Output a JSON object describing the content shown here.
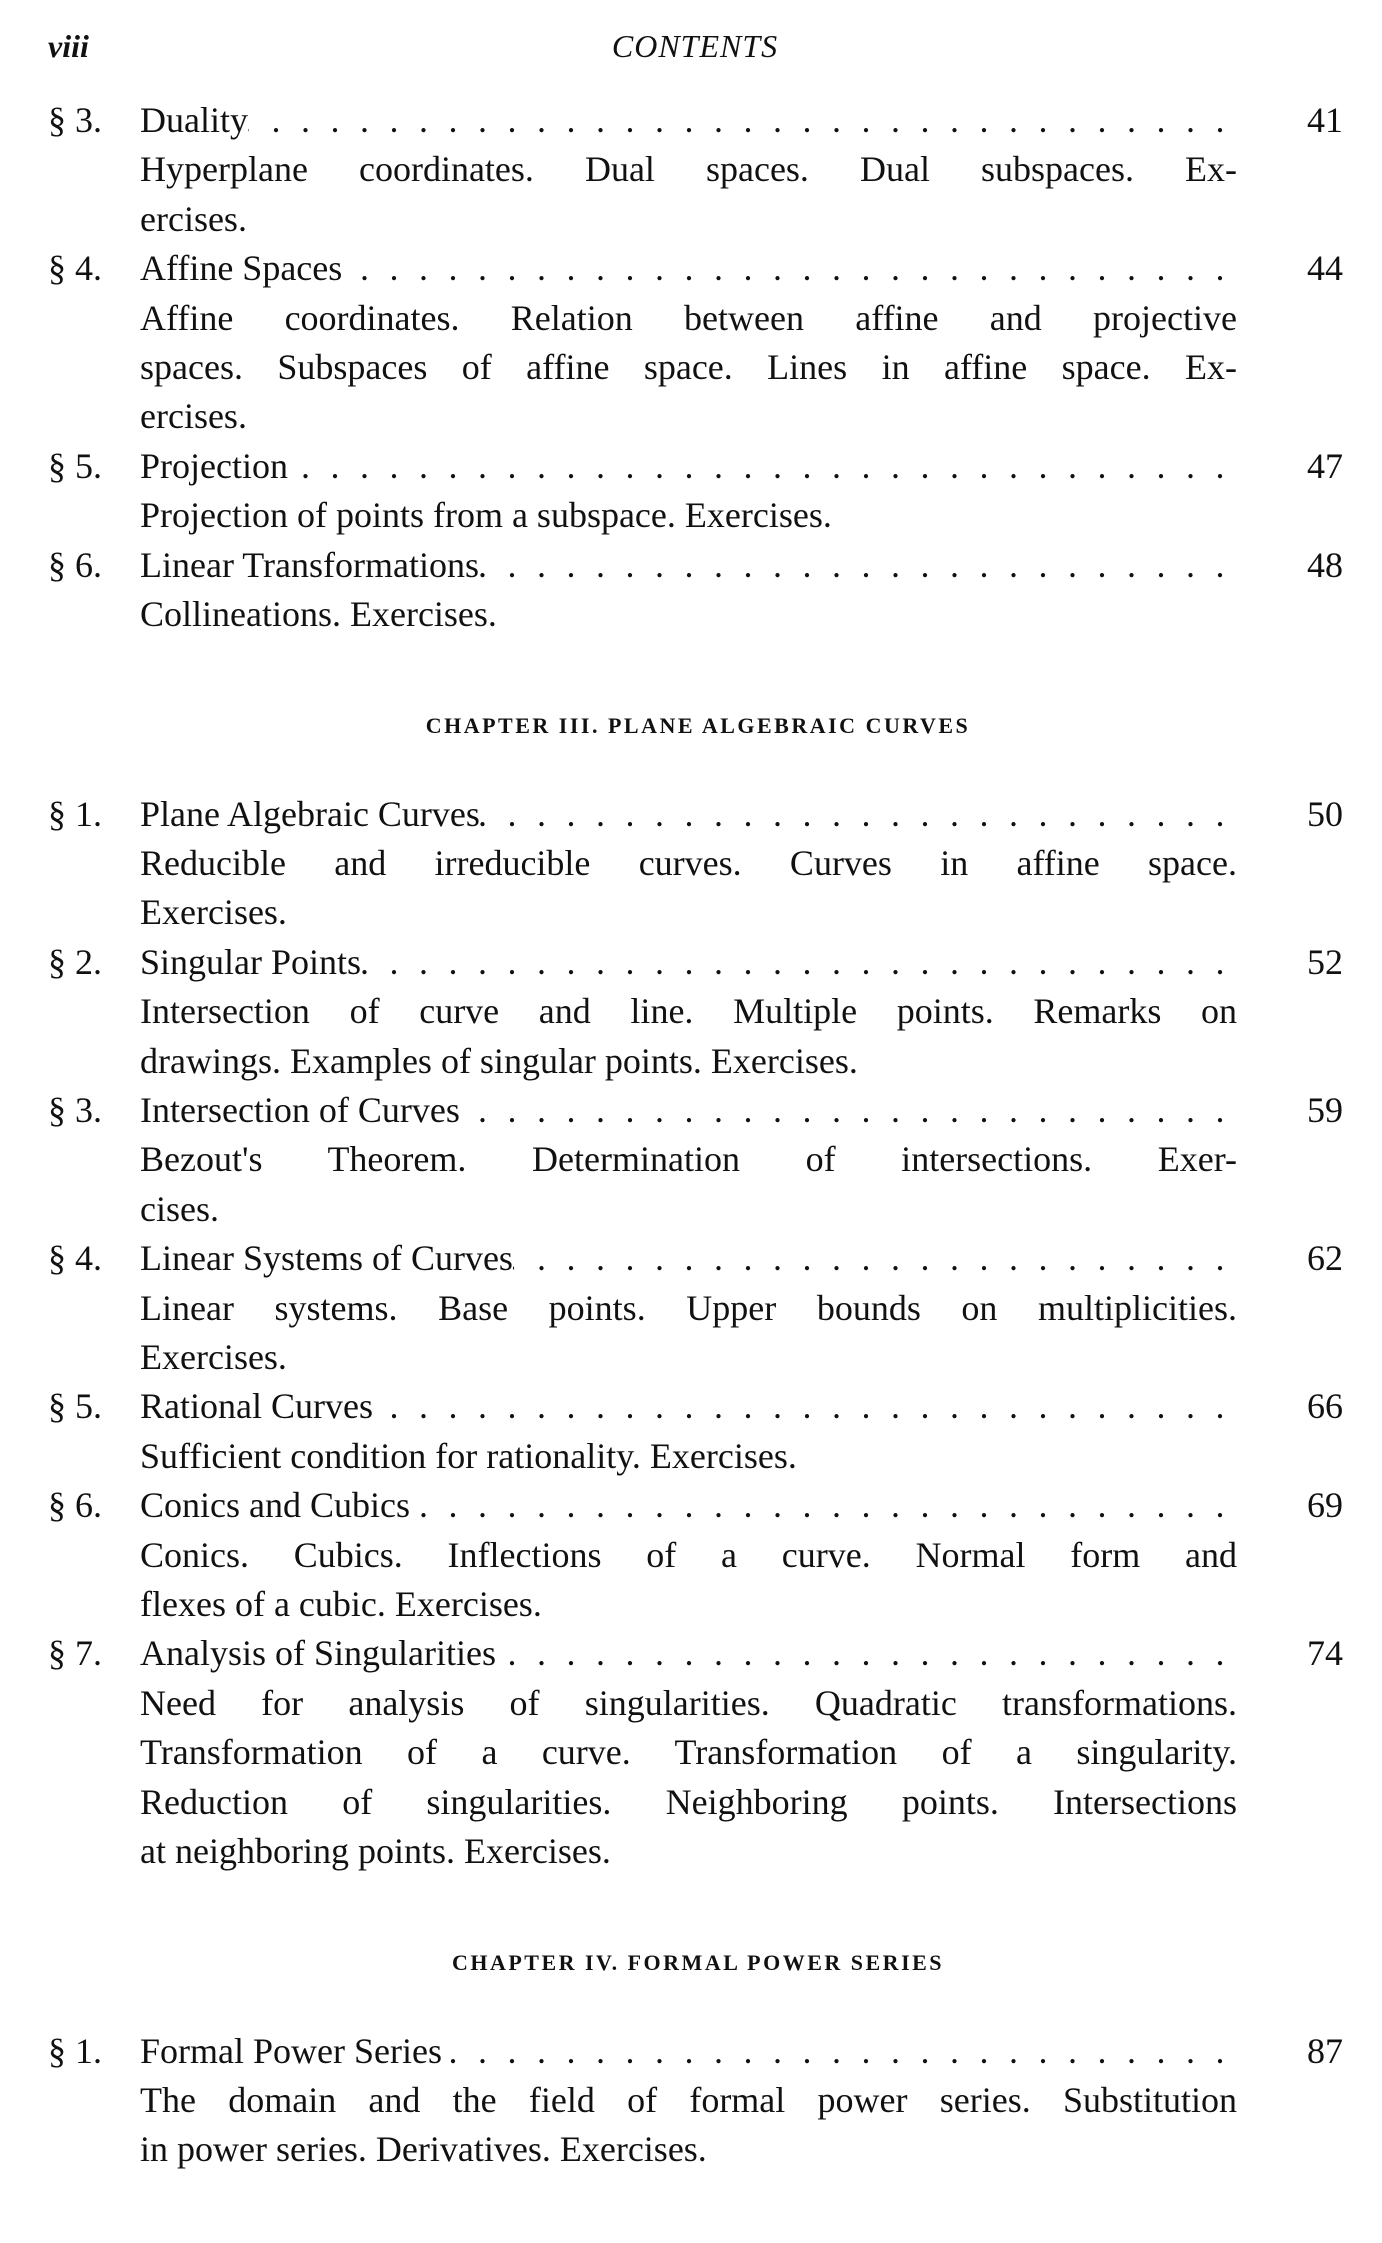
{
  "header": {
    "folio": "viii",
    "title": "CONTENTS"
  },
  "blocks": [
    {
      "type": "entry",
      "num": "§ 3.",
      "title": "Duality",
      "page": "41",
      "lines": [
        "Hyperplane coordinates.  Dual spaces.  Dual subspaces.  Ex-",
        "ercises."
      ]
    },
    {
      "type": "entry",
      "num": "§ 4.",
      "title": "Affine Spaces",
      "page": "44",
      "lines": [
        "Affine coordinates.  Relation between affine and projective",
        "spaces.  Subspaces of affine space.  Lines in affine space.  Ex-",
        "ercises."
      ]
    },
    {
      "type": "entry",
      "num": "§ 5.",
      "title": "Projection",
      "page": "47",
      "lines": [
        "Projection of points from a subspace.  Exercises."
      ]
    },
    {
      "type": "entry",
      "num": "§ 6.",
      "title": "Linear Transformations",
      "page": "48",
      "lines": [
        "Collineations.  Exercises."
      ]
    },
    {
      "type": "chapter",
      "title": "CHAPTER III. PLANE ALGEBRAIC CURVES"
    },
    {
      "type": "entry",
      "num": "§ 1.",
      "title": "Plane Algebraic Curves",
      "page": "50",
      "lines": [
        "Reducible and irreducible curves.  Curves in affine space.",
        "Exercises."
      ]
    },
    {
      "type": "entry",
      "num": "§ 2.",
      "title": "Singular Points",
      "page": "52",
      "lines": [
        "Intersection of curve and line.  Multiple points.  Remarks on",
        "drawings.  Examples of singular points.  Exercises."
      ]
    },
    {
      "type": "entry",
      "num": "§ 3.",
      "title": "Intersection of Curves",
      "page": "59",
      "lines": [
        "Bezout's Theorem.  Determination of intersections.  Exer-",
        "cises."
      ]
    },
    {
      "type": "entry",
      "num": "§ 4.",
      "title": "Linear Systems of Curves",
      "page": "62",
      "lines": [
        "Linear systems.  Base points.  Upper bounds on multiplicities.",
        "Exercises."
      ]
    },
    {
      "type": "entry",
      "num": "§ 5.",
      "title": "Rational Curves",
      "page": "66",
      "lines": [
        "Sufficient condition for rationality.  Exercises."
      ]
    },
    {
      "type": "entry",
      "num": "§ 6.",
      "title": "Conics and Cubics",
      "page": "69",
      "lines": [
        "Conics.  Cubics.  Inflections of a curve.  Normal form and",
        "flexes of a cubic.  Exercises."
      ]
    },
    {
      "type": "entry",
      "num": "§ 7.",
      "title": "Analysis of Singularities",
      "page": "74",
      "lines": [
        "Need for analysis of singularities.  Quadratic transformations.",
        "Transformation of a curve.  Transformation of a singularity.",
        "Reduction of singularities.  Neighboring points.  Intersections",
        "at neighboring points.  Exercises."
      ]
    },
    {
      "type": "chapter",
      "title": "CHAPTER IV. FORMAL POWER SERIES"
    },
    {
      "type": "entry",
      "num": "§ 1.",
      "title": "Formal Power Series",
      "page": "87",
      "lines": [
        "The domain and the field of formal power series.  Substitution",
        "in power series.  Derivatives.  Exercises."
      ]
    }
  ]
}
